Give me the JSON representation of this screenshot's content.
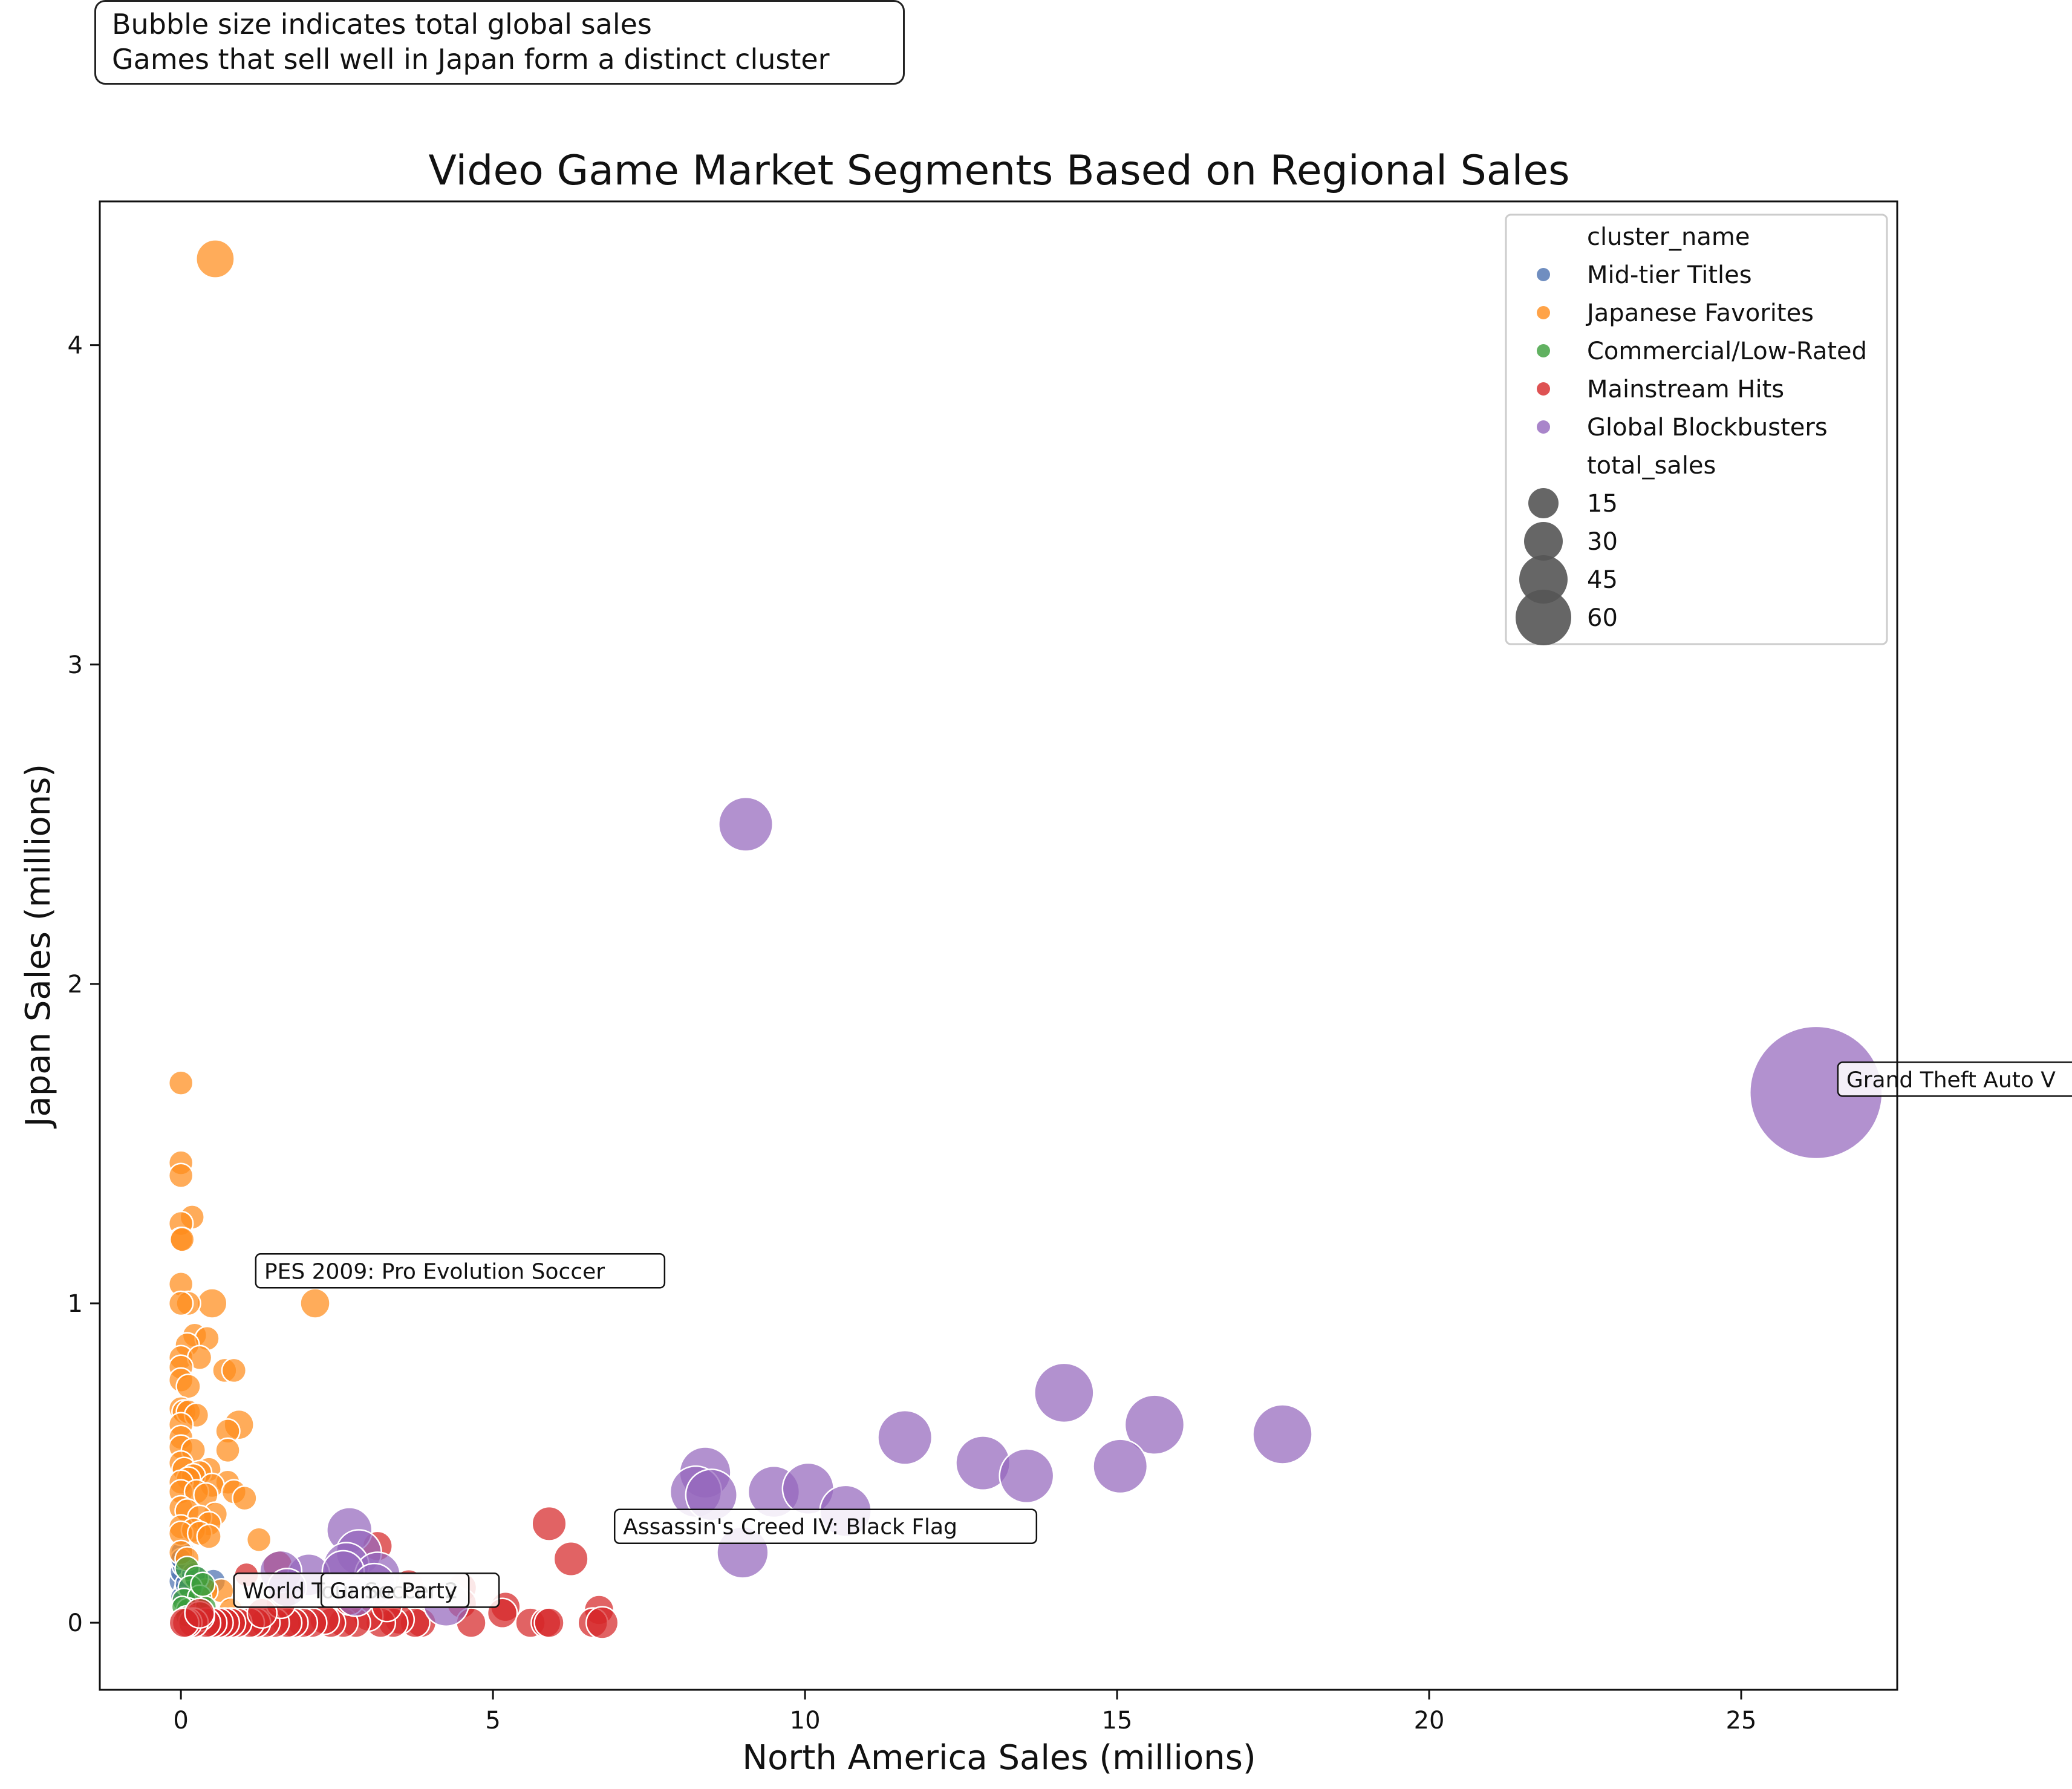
{
  "notes": {
    "line1": "Bubble size indicates total global sales",
    "line2": "Games that sell well in Japan form a distinct cluster"
  },
  "chart_data": {
    "type": "scatter",
    "title": "Video Game Market Segments Based on Regional Sales",
    "xlabel": "North America Sales (millions)",
    "ylabel": "Japan Sales (millions)",
    "xlim": [
      -1.3,
      27.5
    ],
    "ylim": [
      -0.21,
      4.45
    ],
    "xticks": [
      0,
      5,
      10,
      15,
      20,
      25
    ],
    "yticks": [
      0,
      1,
      2,
      3,
      4
    ],
    "grid": false,
    "legend": {
      "placement": "top-right",
      "hue_title": "cluster_name",
      "size_title": "total_sales",
      "size_entries": [
        15,
        30,
        45,
        60
      ]
    },
    "colors": {
      "Mid-tier Titles": "#4c72b0",
      "Japanese Favorites": "#ff8c1a",
      "Commercial/Low-Rated": "#3a9e3a",
      "Mainstream Hits": "#d62728",
      "Global Blockbusters": "#9467bd"
    },
    "series": [
      {
        "name": "Mid-tier Titles",
        "points": [
          [
            0,
            0.13,
            2
          ],
          [
            0.02,
            0.16,
            2
          ],
          [
            0.05,
            0.18,
            2
          ],
          [
            0.08,
            0.1,
            2
          ],
          [
            0,
            0.08,
            1.5
          ],
          [
            0.03,
            0.22,
            2
          ],
          [
            0.1,
            0.12,
            2
          ],
          [
            0.52,
            0.13,
            2
          ],
          [
            0.15,
            0.06,
            1.5
          ],
          [
            0.06,
            0.04,
            1.5
          ],
          [
            0,
            0.2,
            1.5
          ],
          [
            0.2,
            0.15,
            2
          ]
        ]
      },
      {
        "name": "Japanese Favorites",
        "points": [
          [
            0.55,
            4.27,
            5
          ],
          [
            0,
            1.69,
            2
          ],
          [
            0,
            1.44,
            2
          ],
          [
            0,
            1.4,
            2
          ],
          [
            0.18,
            1.27,
            2
          ],
          [
            0,
            1.25,
            2
          ],
          [
            0,
            1.2,
            2
          ],
          [
            0.02,
            1.2,
            2
          ],
          [
            0,
            1.06,
            2
          ],
          [
            0.5,
            1.0,
            3
          ],
          [
            0.12,
            1.0,
            2
          ],
          [
            0,
            1.0,
            2
          ],
          [
            2.15,
            1.0,
            3
          ],
          [
            0.22,
            0.9,
            2
          ],
          [
            0.42,
            0.89,
            2
          ],
          [
            0.1,
            0.87,
            2
          ],
          [
            0,
            0.83,
            2
          ],
          [
            0.3,
            0.83,
            2
          ],
          [
            0,
            0.8,
            2
          ],
          [
            0.7,
            0.79,
            2
          ],
          [
            0.85,
            0.79,
            2
          ],
          [
            0,
            0.76,
            2
          ],
          [
            0.12,
            0.74,
            2
          ],
          [
            0,
            0.67,
            2
          ],
          [
            0.05,
            0.66,
            2
          ],
          [
            0.12,
            0.66,
            2
          ],
          [
            0.25,
            0.65,
            2
          ],
          [
            0,
            0.62,
            2
          ],
          [
            0.93,
            0.62,
            3
          ],
          [
            0.75,
            0.6,
            2
          ],
          [
            0,
            0.58,
            2
          ],
          [
            0,
            0.55,
            2
          ],
          [
            0.75,
            0.54,
            2
          ],
          [
            0.2,
            0.54,
            2
          ],
          [
            0,
            0.5,
            2
          ],
          [
            0.05,
            0.48,
            2
          ],
          [
            0.45,
            0.48,
            2
          ],
          [
            0.3,
            0.47,
            2
          ],
          [
            0.2,
            0.46,
            2
          ],
          [
            0.12,
            0.45,
            2
          ],
          [
            0,
            0.44,
            2
          ],
          [
            0.75,
            0.44,
            2
          ],
          [
            0.5,
            0.43,
            2
          ],
          [
            0,
            0.41,
            2
          ],
          [
            0.25,
            0.41,
            2
          ],
          [
            0.4,
            0.4,
            2
          ],
          [
            0.85,
            0.41,
            2
          ],
          [
            1.02,
            0.39,
            2
          ],
          [
            0,
            0.36,
            2
          ],
          [
            0.1,
            0.35,
            2
          ],
          [
            0.55,
            0.34,
            2
          ],
          [
            0.3,
            0.33,
            2
          ],
          [
            0.45,
            0.31,
            2
          ],
          [
            0,
            0.3,
            2
          ],
          [
            0.2,
            0.29,
            2
          ],
          [
            0,
            0.28,
            2
          ],
          [
            0.3,
            0.28,
            2
          ],
          [
            0.45,
            0.27,
            2
          ],
          [
            1.25,
            0.26,
            2
          ],
          [
            0,
            0.22,
            2
          ],
          [
            0.1,
            0.2,
            2
          ],
          [
            0.65,
            0.1,
            2
          ],
          [
            0.8,
            0.04,
            2
          ],
          [
            0.4,
            0.1,
            2
          ]
        ]
      },
      {
        "name": "Commercial/Low-Rated",
        "points": [
          [
            0.1,
            0.17,
            2
          ],
          [
            0.25,
            0.14,
            2
          ],
          [
            0.15,
            0.11,
            2
          ],
          [
            0.05,
            0.07,
            2
          ],
          [
            0.3,
            0.08,
            2
          ],
          [
            0.12,
            0.04,
            2
          ],
          [
            0.02,
            0.05,
            1.5
          ],
          [
            0.2,
            0.02,
            1.5
          ],
          [
            0.4,
            0.05,
            1.5
          ],
          [
            0.08,
            0.02,
            1.5
          ],
          [
            0.35,
            0.12,
            2
          ]
        ]
      },
      {
        "name": "Mainstream Hits",
        "points": [
          [
            5.9,
            0.31,
            4
          ],
          [
            6.25,
            0.2,
            4
          ],
          [
            3.15,
            0.24,
            3
          ],
          [
            1.55,
            0.18,
            3
          ],
          [
            1.05,
            0.15,
            2
          ],
          [
            3.65,
            0.12,
            3
          ],
          [
            4.5,
            0.11,
            3
          ],
          [
            4.5,
            0.06,
            3
          ],
          [
            5.2,
            0.05,
            3
          ],
          [
            5.15,
            0.03,
            3
          ],
          [
            6.7,
            0.04,
            3
          ],
          [
            6.6,
            0.0,
            3
          ],
          [
            6.75,
            0.0,
            3.5
          ],
          [
            5.6,
            0.0,
            3
          ],
          [
            5.85,
            0.0,
            3
          ],
          [
            5.9,
            0.0,
            3
          ],
          [
            4.65,
            0.0,
            3
          ],
          [
            3.85,
            0.0,
            3
          ],
          [
            3.75,
            0.0,
            3
          ],
          [
            3.5,
            0.01,
            3
          ],
          [
            3.4,
            0.0,
            3
          ],
          [
            3.2,
            0.0,
            3
          ],
          [
            3.0,
            0.02,
            3
          ],
          [
            2.8,
            0.0,
            3
          ],
          [
            2.6,
            0.0,
            3
          ],
          [
            2.4,
            0.0,
            3
          ],
          [
            2.3,
            0.01,
            3
          ],
          [
            2.1,
            0.0,
            3
          ],
          [
            1.95,
            0.0,
            3
          ],
          [
            1.8,
            0.0,
            3
          ],
          [
            1.7,
            0.0,
            3
          ],
          [
            1.5,
            0.0,
            3
          ],
          [
            1.35,
            0.0,
            3
          ],
          [
            1.2,
            0.0,
            3
          ],
          [
            1.1,
            0.0,
            3
          ],
          [
            0.9,
            0.0,
            3
          ],
          [
            0.8,
            0.0,
            3
          ],
          [
            0.7,
            0.0,
            3
          ],
          [
            0.6,
            0.0,
            3
          ],
          [
            0.5,
            0.0,
            3
          ],
          [
            0.4,
            0.0,
            3
          ],
          [
            0.3,
            0.02,
            3
          ],
          [
            0.2,
            0.0,
            3
          ],
          [
            0.1,
            0.0,
            3
          ],
          [
            0.05,
            0.0,
            3
          ],
          [
            1.6,
            0.06,
            3
          ],
          [
            2.7,
            0.07,
            3
          ],
          [
            3.3,
            0.05,
            3
          ],
          [
            1.3,
            0.03,
            3
          ],
          [
            0.3,
            0.03,
            3
          ]
        ]
      },
      {
        "name": "Global Blockbusters",
        "points": [
          [
            26.2,
            1.66,
            60
          ],
          [
            9.05,
            2.5,
            10
          ],
          [
            14.15,
            0.72,
            12
          ],
          [
            15.6,
            0.62,
            12
          ],
          [
            17.65,
            0.59,
            12
          ],
          [
            11.6,
            0.58,
            10
          ],
          [
            12.85,
            0.5,
            10
          ],
          [
            15.05,
            0.49,
            10
          ],
          [
            13.55,
            0.46,
            10
          ],
          [
            8.4,
            0.47,
            9
          ],
          [
            8.25,
            0.41,
            9
          ],
          [
            8.5,
            0.4,
            9
          ],
          [
            9.5,
            0.41,
            9
          ],
          [
            10.05,
            0.42,
            9
          ],
          [
            10.65,
            0.35,
            9
          ],
          [
            9.0,
            0.22,
            9
          ],
          [
            2.7,
            0.29,
            7
          ],
          [
            2.85,
            0.22,
            7
          ],
          [
            2.65,
            0.18,
            7
          ],
          [
            2.05,
            0.15,
            6
          ],
          [
            3.15,
            0.15,
            7
          ],
          [
            1.6,
            0.16,
            6
          ],
          [
            2.6,
            0.16,
            6
          ],
          [
            3.1,
            0.12,
            6
          ],
          [
            1.7,
            0.11,
            5
          ],
          [
            4.25,
            0.06,
            7
          ],
          [
            2.8,
            0.08,
            5
          ]
        ]
      }
    ],
    "annotations": [
      {
        "text": "Grand Theft Auto V",
        "x": 26.2,
        "y": 1.66
      },
      {
        "text": "PES 2009: Pro Evolution Soccer",
        "x": 0.85,
        "y": 1.06
      },
      {
        "text": "Assassin's Creed IV: Black Flag",
        "x": 6.6,
        "y": 0.26
      },
      {
        "text": "World Tour Soccer 2",
        "x": 0.5,
        "y": 0.06
      },
      {
        "text": "Game Party",
        "x": 1.9,
        "y": 0.06
      }
    ]
  }
}
